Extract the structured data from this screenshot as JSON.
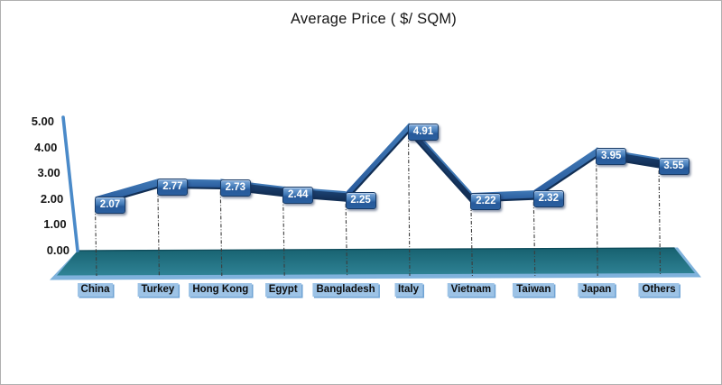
{
  "window": {
    "background": "#ffffff",
    "border_color": "#b0b0b0"
  },
  "chart_data": {
    "type": "line",
    "variant": "3d-ribbon-line",
    "title": "Average Price ( $/ SQM)",
    "xlabel": "",
    "ylabel": "",
    "categories": [
      "China",
      "Turkey",
      "Hong Kong",
      "Egypt",
      "Bangladesh",
      "Italy",
      "Vietnam",
      "Taiwan",
      "Japan",
      "Others"
    ],
    "values": [
      2.07,
      2.77,
      2.73,
      2.44,
      2.25,
      4.91,
      2.22,
      2.32,
      3.95,
      3.55
    ],
    "data_labels": [
      "2.07",
      "2.77",
      "2.73",
      "2.44",
      "2.25",
      "4.91",
      "2.22",
      "2.32",
      "3.95",
      "3.55"
    ],
    "y_ticks": [
      {
        "label": "5.00",
        "value": 5
      },
      {
        "label": "4.00",
        "value": 4
      },
      {
        "label": "3.00",
        "value": 3
      },
      {
        "label": "2.00",
        "value": 2
      },
      {
        "label": "1.00",
        "value": 1
      },
      {
        "label": "0.00",
        "value": 0
      }
    ],
    "ylim": [
      0,
      5
    ],
    "gridlines": false,
    "legend_position": "none",
    "colors": {
      "ribbon_light_top": "#4079b6",
      "ribbon_main": "#2d63a4",
      "ribbon_dark_edge": "#122f55",
      "ribbon_descending": "#1f4a7e",
      "label_box_border": "#173a66",
      "label_text": "#ffffff",
      "category_box": "#9dc3e6",
      "category_text": "#0d0d0d",
      "floor_top": "#17616f",
      "floor_bottom": "#2f8396",
      "floor_edge": "#7fb2dc",
      "axis_line": "#4a8ac9",
      "drop_line": "#3c3c3c",
      "tick_text": "#161616",
      "title_text": "#151515"
    }
  }
}
